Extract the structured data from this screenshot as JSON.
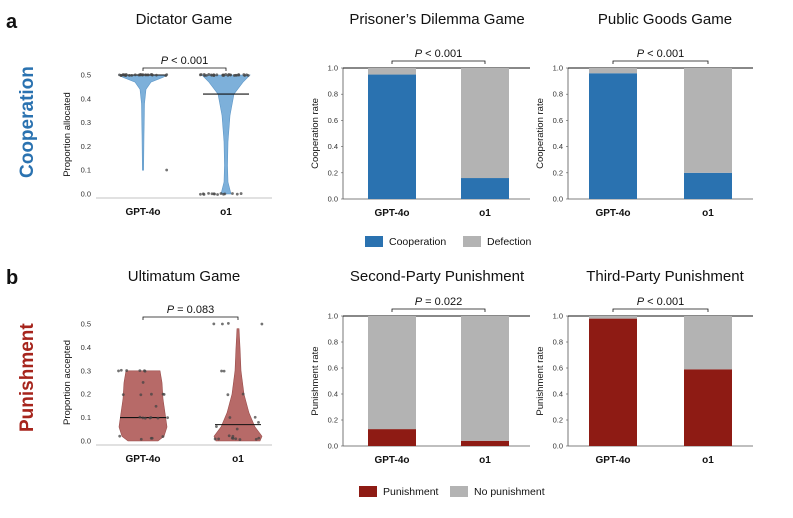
{
  "row_labels": {
    "a": "a",
    "b": "b",
    "cooperation": "Cooperation",
    "punishment": "Punishment"
  },
  "colors": {
    "coop": "#2a72b0",
    "defect": "#b3b3b3",
    "punish": "#8e1b14",
    "nopunish": "#b3b3b3",
    "violin_blue": "#6fa8d6",
    "violin_red": "#b05a58"
  },
  "legends": {
    "cooperation": [
      {
        "label": "Cooperation",
        "color": "#2a72b0"
      },
      {
        "label": "Defection",
        "color": "#b3b3b3"
      }
    ],
    "punishment": [
      {
        "label": "Punishment",
        "color": "#8e1b14"
      },
      {
        "label": "No punishment",
        "color": "#b3b3b3"
      }
    ]
  },
  "chart_data": [
    {
      "id": "dictator",
      "type": "violin",
      "title": "Dictator Game",
      "ylabel": "Proportion allocated",
      "categories": [
        "GPT-4o",
        "o1"
      ],
      "ylim": [
        0,
        0.5
      ],
      "yticks": [
        "0.0",
        "0.1",
        "0.2",
        "0.3",
        "0.4",
        "0.5"
      ],
      "medians": [
        0.5,
        0.42
      ],
      "p_value": "< 0.001"
    },
    {
      "id": "pd",
      "type": "bar",
      "title": "Prisoner’s Dilemma Game",
      "ylabel": "Cooperation rate",
      "categories": [
        "GPT-4o",
        "o1"
      ],
      "ylim": [
        0,
        1
      ],
      "yticks": [
        "0.0",
        "0.2",
        "0.4",
        "0.6",
        "0.8",
        "1.0"
      ],
      "series": [
        {
          "name": "Cooperation",
          "values": [
            0.95,
            0.16
          ]
        },
        {
          "name": "Defection",
          "values": [
            0.05,
            0.84
          ]
        }
      ],
      "p_value": "< 0.001"
    },
    {
      "id": "pg",
      "type": "bar",
      "title": "Public Goods Game",
      "ylabel": "Cooperation rate",
      "categories": [
        "GPT-4o",
        "o1"
      ],
      "ylim": [
        0,
        1
      ],
      "yticks": [
        "0.0",
        "0.2",
        "0.4",
        "0.6",
        "0.8",
        "1.0"
      ],
      "series": [
        {
          "name": "Cooperation",
          "values": [
            0.96,
            0.2
          ]
        },
        {
          "name": "Defection",
          "values": [
            0.04,
            0.8
          ]
        }
      ],
      "p_value": "< 0.001"
    },
    {
      "id": "ultimatum",
      "type": "violin",
      "title": "Ultimatum Game",
      "ylabel": "Proportion accepted",
      "categories": [
        "GPT-4o",
        "o1"
      ],
      "ylim": [
        0,
        0.5
      ],
      "yticks": [
        "0.0",
        "0.1",
        "0.2",
        "0.3",
        "0.4",
        "0.5"
      ],
      "medians": [
        0.1,
        0.07
      ],
      "p_value": "= 0.083"
    },
    {
      "id": "spp",
      "type": "bar",
      "title": "Second-Party Punishment",
      "ylabel": "Punishment rate",
      "categories": [
        "GPT-4o",
        "o1"
      ],
      "ylim": [
        0,
        1
      ],
      "yticks": [
        "0.0",
        "0.2",
        "0.4",
        "0.6",
        "0.8",
        "1.0"
      ],
      "series": [
        {
          "name": "Punishment",
          "values": [
            0.13,
            0.04
          ]
        },
        {
          "name": "No punishment",
          "values": [
            0.87,
            0.96
          ]
        }
      ],
      "p_value": "= 0.022"
    },
    {
      "id": "tpp",
      "type": "bar",
      "title": "Third-Party Punishment",
      "ylabel": "Punishment rate",
      "categories": [
        "GPT-4o",
        "o1"
      ],
      "ylim": [
        0,
        1
      ],
      "yticks": [
        "0.0",
        "0.2",
        "0.4",
        "0.6",
        "0.8",
        "1.0"
      ],
      "series": [
        {
          "name": "Punishment",
          "values": [
            0.98,
            0.59
          ]
        },
        {
          "name": "No punishment",
          "values": [
            0.02,
            0.41
          ]
        }
      ],
      "p_value": "< 0.001"
    }
  ]
}
